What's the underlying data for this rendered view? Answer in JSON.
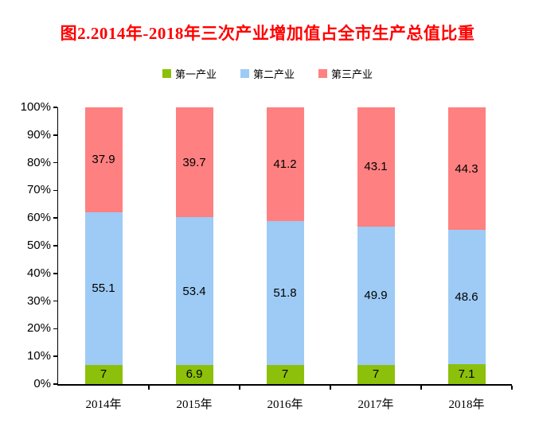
{
  "chart_data": {
    "type": "bar",
    "stacked": true,
    "stacked_percent": true,
    "title": "图2.2014年-2018年三次产业增加值占全市生产总值比重",
    "categories": [
      "2014年",
      "2015年",
      "2016年",
      "2017年",
      "2018年"
    ],
    "series": [
      {
        "name": "第一产业",
        "color": "#8CC00A",
        "values": [
          7,
          6.9,
          7,
          7,
          7.1
        ]
      },
      {
        "name": "第二产业",
        "color": "#9DCBF5",
        "values": [
          55.1,
          53.4,
          51.8,
          49.9,
          48.6
        ]
      },
      {
        "name": "第三产业",
        "color": "#FF8080",
        "values": [
          37.9,
          39.7,
          41.2,
          43.1,
          44.3
        ]
      }
    ],
    "xlabel": "",
    "ylabel": "",
    "ylim": [
      0,
      100
    ],
    "ytick_step": 10,
    "yticks": [
      "0%",
      "10%",
      "20%",
      "30%",
      "40%",
      "50%",
      "60%",
      "70%",
      "80%",
      "90%",
      "100%"
    ],
    "legend_position": "top",
    "grid": false,
    "value_labels_shown": true
  },
  "colors": {
    "title": "#FF0000",
    "axis": "#000000",
    "text": "#000000",
    "background": "#FFFFFF"
  }
}
